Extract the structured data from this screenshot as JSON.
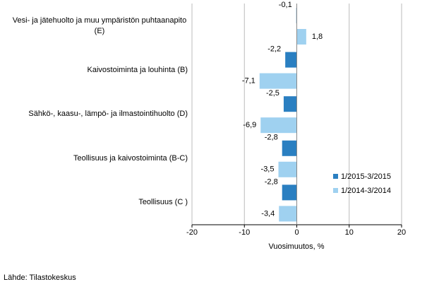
{
  "chart_data": {
    "type": "hbar",
    "categories": [
      "Vesi- ja jätehuolto ja muu ympäristön puhtaanapito (E)",
      "Kaivostoiminta ja louhinta (B)",
      "Sähkö-, kaasu-, lämpö- ja ilmastointihuolto (D)",
      "Teollisuus ja kaivostoiminta (B-C)",
      "Teollisuus (C )"
    ],
    "series": [
      {
        "name": "1/2015-3/2015",
        "color": "#2a7fc1",
        "values": [
          -0.1,
          -2.2,
          -2.5,
          -2.8,
          -2.8
        ],
        "value_labels": [
          "-0,1",
          "-2,2",
          "-2,5",
          "-2,8",
          "-2,8"
        ]
      },
      {
        "name": "1/2014-3/2014",
        "color": "#9fd1f0",
        "values": [
          1.8,
          -7.1,
          -6.9,
          -3.5,
          -3.4
        ],
        "value_labels": [
          "1,8",
          "-7,1",
          "-6,9",
          "-3,5",
          "-3,4"
        ]
      }
    ],
    "xlim": [
      -20,
      20
    ],
    "xticks": [
      -20,
      -10,
      0,
      10,
      20
    ],
    "grid": true,
    "x_label": "Vuosimuutos, %",
    "source": "Lähde: Tilastokeskus"
  }
}
